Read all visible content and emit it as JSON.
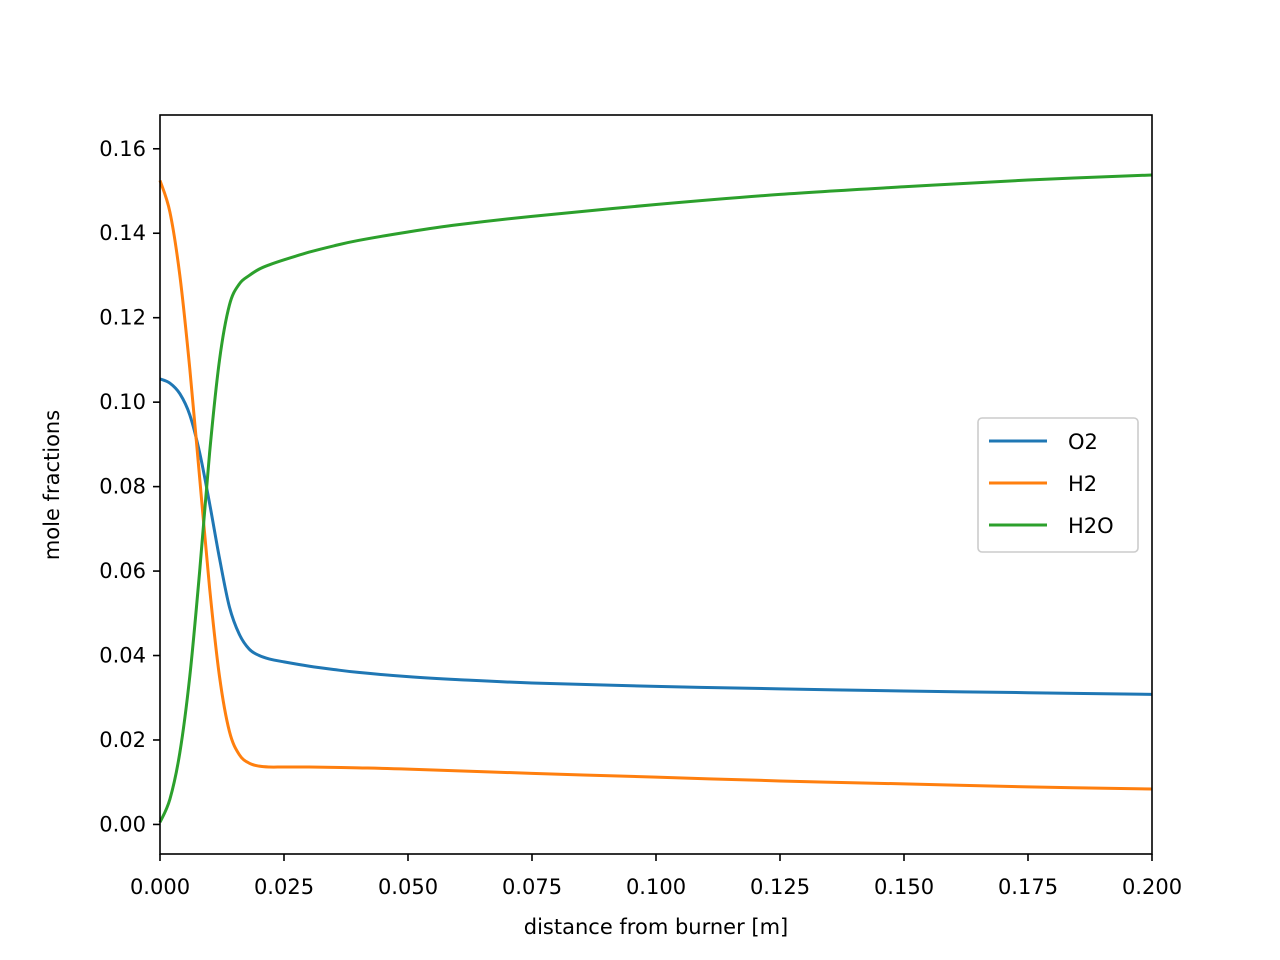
{
  "chart_data": {
    "type": "line",
    "title": "",
    "xlabel": "distance from burner [m]",
    "ylabel": "mole fractions",
    "xlim": [
      0.0,
      0.2
    ],
    "ylim": [
      -0.007,
      0.168
    ],
    "xticks": [
      "0.000",
      "0.025",
      "0.050",
      "0.075",
      "0.100",
      "0.125",
      "0.150",
      "0.175",
      "0.200"
    ],
    "yticks": [
      "0.00",
      "0.02",
      "0.04",
      "0.06",
      "0.08",
      "0.10",
      "0.12",
      "0.14",
      "0.16"
    ],
    "grid": false,
    "legend_position": "center-right",
    "series": [
      {
        "name": "O2",
        "color": "#1f77b4",
        "x": [
          0.0,
          0.002,
          0.004,
          0.006,
          0.008,
          0.01,
          0.012,
          0.014,
          0.016,
          0.018,
          0.02,
          0.022,
          0.025,
          0.03,
          0.035,
          0.04,
          0.05,
          0.06,
          0.075,
          0.1,
          0.125,
          0.15,
          0.175,
          0.2
        ],
        "y": [
          0.1055,
          0.1045,
          0.102,
          0.097,
          0.088,
          0.076,
          0.063,
          0.0515,
          0.045,
          0.0415,
          0.04,
          0.0392,
          0.0385,
          0.0375,
          0.0367,
          0.036,
          0.035,
          0.0343,
          0.0335,
          0.0327,
          0.0321,
          0.0316,
          0.0312,
          0.0308
        ]
      },
      {
        "name": "H2",
        "color": "#ff7f0e",
        "x": [
          0.0,
          0.002,
          0.004,
          0.006,
          0.008,
          0.01,
          0.012,
          0.014,
          0.016,
          0.018,
          0.02,
          0.022,
          0.025,
          0.03,
          0.04,
          0.05,
          0.075,
          0.1,
          0.125,
          0.15,
          0.175,
          0.2
        ],
        "y": [
          0.1525,
          0.145,
          0.13,
          0.108,
          0.082,
          0.056,
          0.035,
          0.022,
          0.0165,
          0.0145,
          0.0138,
          0.0136,
          0.0136,
          0.0136,
          0.0134,
          0.0131,
          0.0121,
          0.0112,
          0.0103,
          0.0096,
          0.0089,
          0.0084
        ]
      },
      {
        "name": "H2O",
        "color": "#2ca02c",
        "x": [
          0.0,
          0.002,
          0.004,
          0.006,
          0.008,
          0.01,
          0.012,
          0.014,
          0.016,
          0.018,
          0.02,
          0.022,
          0.025,
          0.03,
          0.035,
          0.04,
          0.05,
          0.06,
          0.075,
          0.1,
          0.125,
          0.15,
          0.175,
          0.2
        ],
        "y": [
          0.0005,
          0.006,
          0.017,
          0.035,
          0.06,
          0.088,
          0.11,
          0.123,
          0.128,
          0.13,
          0.1315,
          0.1325,
          0.1337,
          0.1355,
          0.137,
          0.1383,
          0.1403,
          0.142,
          0.144,
          0.1468,
          0.1492,
          0.151,
          0.1526,
          0.1538
        ]
      }
    ]
  }
}
